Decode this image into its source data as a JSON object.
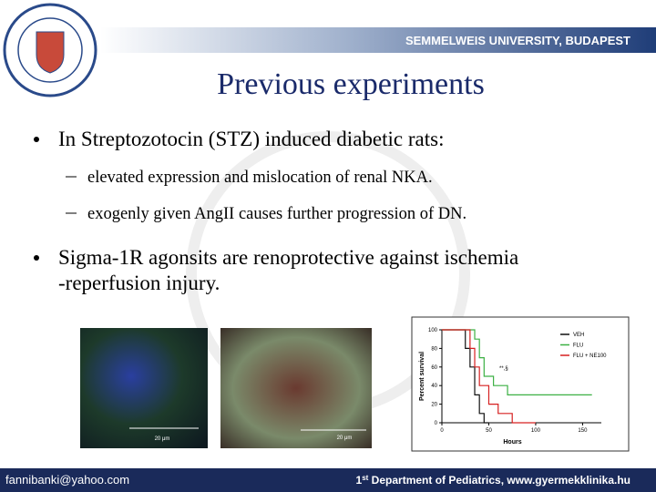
{
  "header": {
    "university": "SEMMELWEIS UNIVERSITY, BUDAPEST"
  },
  "title": "Previous experiments",
  "bullets": [
    {
      "lines": [
        "In Streptozotocin (STZ) induced diabetic rats:"
      ],
      "sub": [
        "elevated expression and mislocation of renal NKA.",
        "exogenly given AngΙΙ causes further progression of DN."
      ]
    },
    {
      "lines": [
        "Sigma-1R agonsits are renoprotective against ischemia",
        "-reperfusion injury."
      ],
      "sub": []
    }
  ],
  "images": {
    "scale_left": "20 μm",
    "scale_right": "20 μm"
  },
  "survival_chart": {
    "type": "line",
    "ylabel": "Percent survival",
    "xlabel": "Hours",
    "xlim": [
      0,
      170
    ],
    "ylim": [
      0,
      100
    ],
    "xticks": [
      0,
      50,
      100,
      150
    ],
    "yticks": [
      0,
      20,
      40,
      60,
      80,
      100
    ],
    "annotation": "**,§",
    "series": [
      {
        "name": "VEH",
        "color": "#111111",
        "x": [
          0,
          25,
          25,
          30,
          30,
          35,
          35,
          40,
          40,
          45,
          45,
          50
        ],
        "y": [
          100,
          100,
          80,
          80,
          60,
          60,
          30,
          30,
          10,
          10,
          0,
          0
        ]
      },
      {
        "name": "FLU",
        "color": "#3cb043",
        "x": [
          0,
          35,
          35,
          40,
          40,
          45,
          45,
          55,
          55,
          70,
          70,
          160
        ],
        "y": [
          100,
          100,
          90,
          90,
          70,
          70,
          50,
          50,
          40,
          40,
          30,
          30
        ]
      },
      {
        "name": "FLU + NE100",
        "color": "#d62020",
        "x": [
          0,
          30,
          30,
          35,
          35,
          40,
          40,
          50,
          50,
          60,
          60,
          75,
          75,
          100
        ],
        "y": [
          100,
          100,
          80,
          80,
          60,
          60,
          40,
          40,
          20,
          20,
          10,
          10,
          0,
          0
        ]
      }
    ]
  },
  "footer": {
    "email": "fannibanki@yahoo.com",
    "dept_num": "1",
    "dept_sup": "st",
    "dept_text": " Department of Pediatrics, www.gyermekklinika.hu"
  }
}
